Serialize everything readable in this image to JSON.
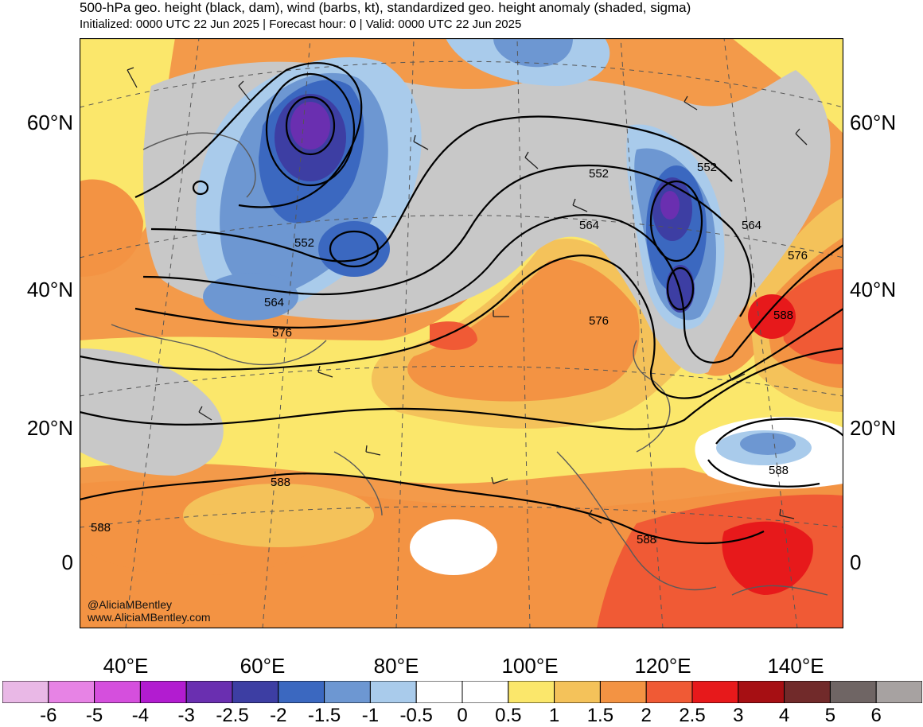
{
  "header": {
    "title": "500-hPa geo. height (black, dam), wind (barbs, kt), standardized geo. height anomaly (shaded, sigma)",
    "subtitle": "Initialized: 0000 UTC 22 Jun 2025 | Forecast hour: 0 | Valid: 0000 UTC 22 Jun 2025"
  },
  "axes": {
    "lat_labels": [
      "60°N",
      "40°N",
      "20°N",
      "0"
    ],
    "lon_labels": [
      "40°E",
      "60°E",
      "80°E",
      "100°E",
      "120°E",
      "140°E"
    ]
  },
  "contour_labels": [
    "552",
    "564",
    "576",
    "588",
    "552",
    "564",
    "576",
    "552",
    "564",
    "576",
    "588",
    "588",
    "588",
    "588"
  ],
  "colorbar": {
    "ticks": [
      "-6",
      "-5",
      "-4",
      "-3",
      "-2.5",
      "-2",
      "-1.5",
      "-1",
      "-0.5",
      "0",
      "0.5",
      "1",
      "1.5",
      "2",
      "2.5",
      "3",
      "4",
      "5",
      "6"
    ],
    "colors": [
      "#e9b8e6",
      "#e783e5",
      "#d54fdd",
      "#b21cd0",
      "#6a2fb0",
      "#3d3ea3",
      "#3b68c0",
      "#6d97d2",
      "#a9cbeb",
      "#ffffff",
      "#ffffff",
      "#fbe76b",
      "#f4c25a",
      "#f39343",
      "#f05a35",
      "#e7191b",
      "#a60f13",
      "#712a2a",
      "#6f6564",
      "#a7a2a1"
    ]
  },
  "credits": {
    "handle": "@AliciaMBentley",
    "website": "www.AliciaMBentley.com"
  }
}
